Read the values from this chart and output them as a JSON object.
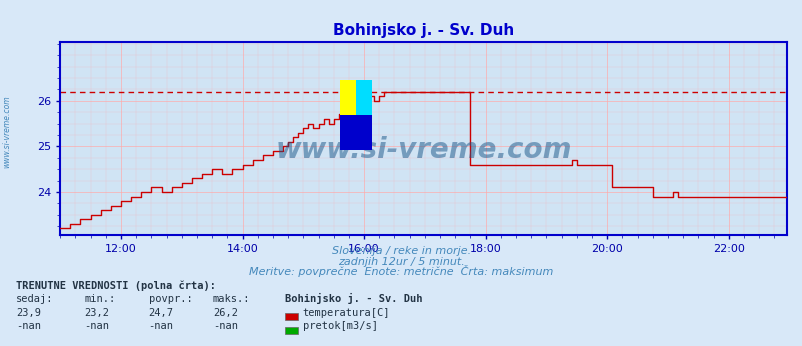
{
  "title": "Bohinjsko j. - Sv. Duh",
  "title_color": "#0000cc",
  "title_fontsize": 11,
  "bg_color": "#d8e8f8",
  "plot_bg_color": "#d0e4f4",
  "grid_color": "#ffaaaa",
  "axis_color": "#0000cc",
  "tick_color": "#0000aa",
  "text_color": "#4488bb",
  "watermark": "www.si-vreme.com",
  "watermark_color": "#1a5588",
  "subtitle1": "Slovenija / reke in morje.",
  "subtitle2": "zadnjih 12ur / 5 minut.",
  "subtitle3": "Meritve: povprečne  Enote: metrične  Črta: maksimum",
  "table_header": "TRENUTNE VREDNOSTI (polna črta):",
  "col_headers": [
    "sedaj:",
    "min.:",
    "povpr.:",
    "maks.:"
  ],
  "row1_values": [
    "23,9",
    "23,2",
    "24,7",
    "26,2"
  ],
  "row2_values": [
    "-nan",
    "-nan",
    "-nan",
    "-nan"
  ],
  "station_name": "Bohinjsko j. - Sv. Duh",
  "legend1_color": "#cc0000",
  "legend1_label": "temperatura[C]",
  "legend2_color": "#00aa00",
  "legend2_label": "pretok[m3/s]",
  "xmin": 0,
  "xmax": 287,
  "ymin": 23.05,
  "ymax": 27.3,
  "yticks": [
    24,
    25,
    26
  ],
  "xtick_positions": [
    24,
    72,
    120,
    168,
    216,
    264
  ],
  "xtick_labels": [
    "12:00",
    "14:00",
    "16:00",
    "18:00",
    "20:00",
    "22:00"
  ],
  "max_line_y": 26.2
}
